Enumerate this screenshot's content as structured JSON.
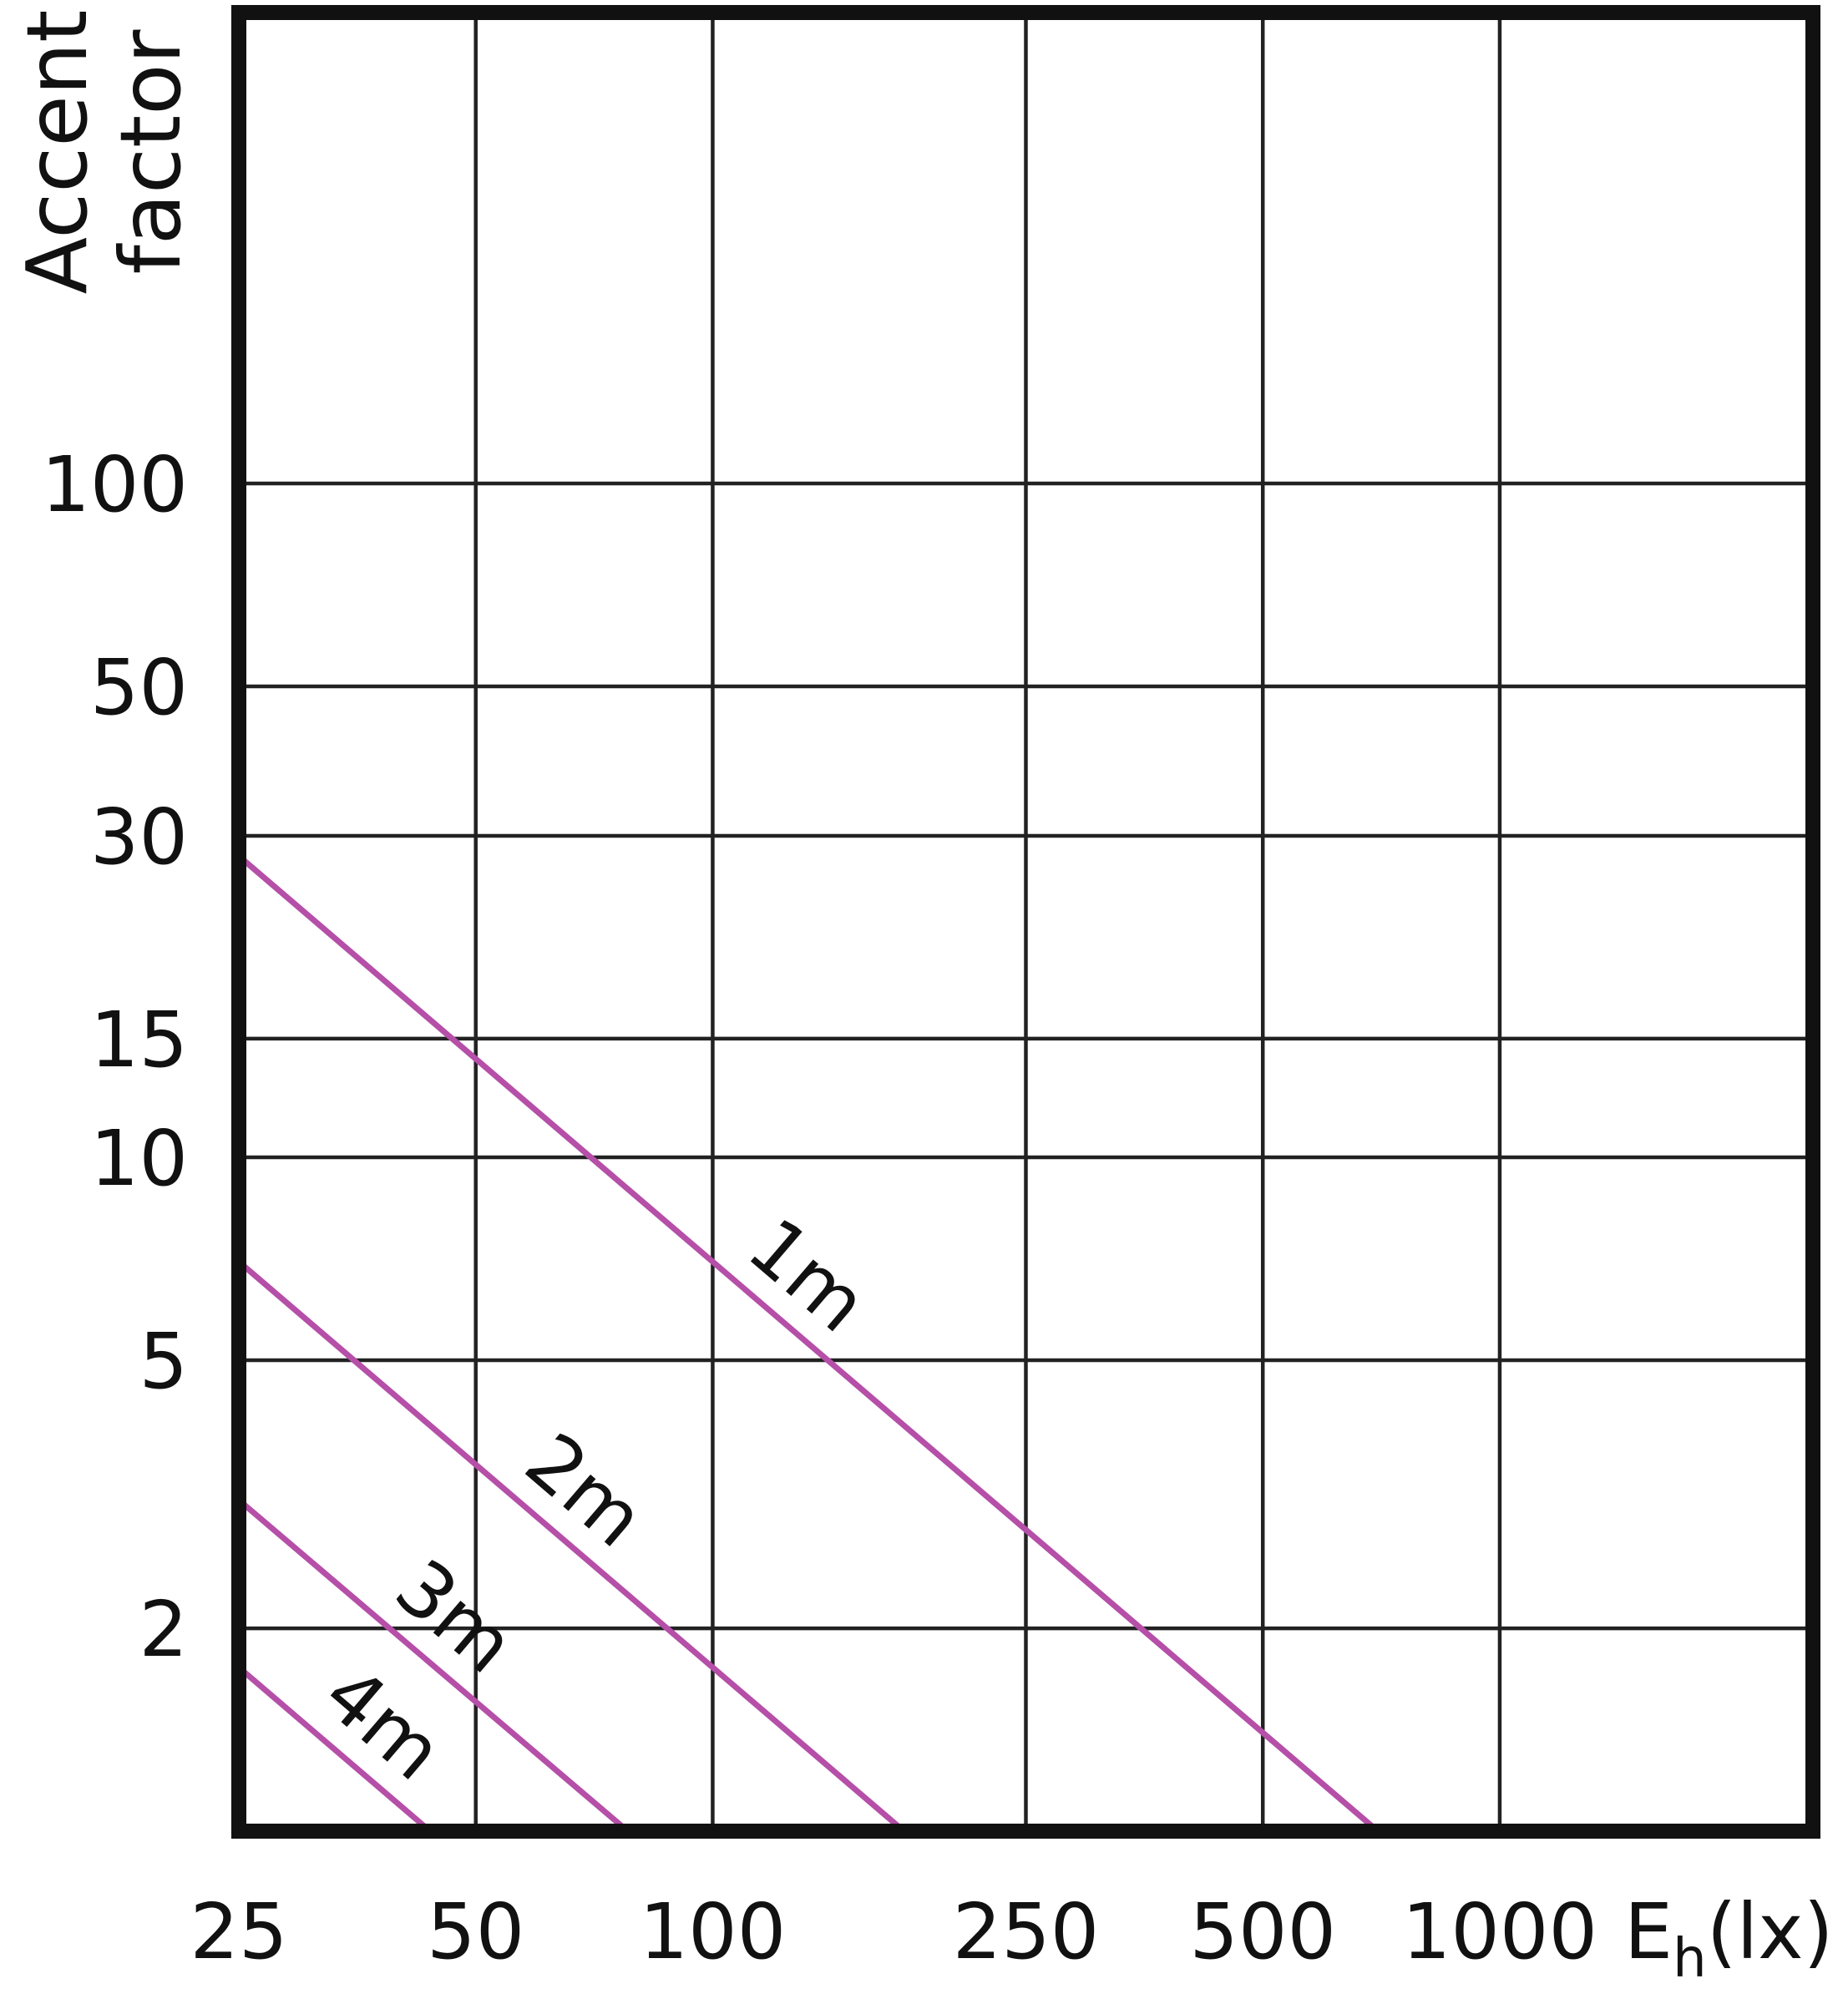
{
  "chart_data": {
    "type": "line",
    "ylabel": [
      "Accent",
      "factor"
    ],
    "xlabel": {
      "main": "E",
      "sub": "h",
      "unit": "(lx)"
    },
    "xscale": "log",
    "yscale": "log",
    "grid": true,
    "xlim": [
      25,
      2500
    ],
    "xticks": [
      25,
      50,
      100,
      250,
      500,
      1000
    ],
    "ylim": [
      1,
      500
    ],
    "yticks": [
      2,
      5,
      10,
      15,
      30,
      50,
      100
    ],
    "series": [
      {
        "name": "1m",
        "color": "#b54fa8",
        "x": [
          25,
          700
        ],
        "values": [
          28,
          1
        ]
      },
      {
        "name": "2m",
        "color": "#b54fa8",
        "x": [
          25,
          175
        ],
        "values": [
          7,
          1
        ]
      },
      {
        "name": "3m",
        "color": "#b54fa8",
        "x": [
          25,
          78
        ],
        "values": [
          3.1,
          1
        ]
      },
      {
        "name": "4m",
        "color": "#b54fa8",
        "x": [
          25,
          43.75
        ],
        "values": [
          1.75,
          1
        ]
      }
    ]
  }
}
